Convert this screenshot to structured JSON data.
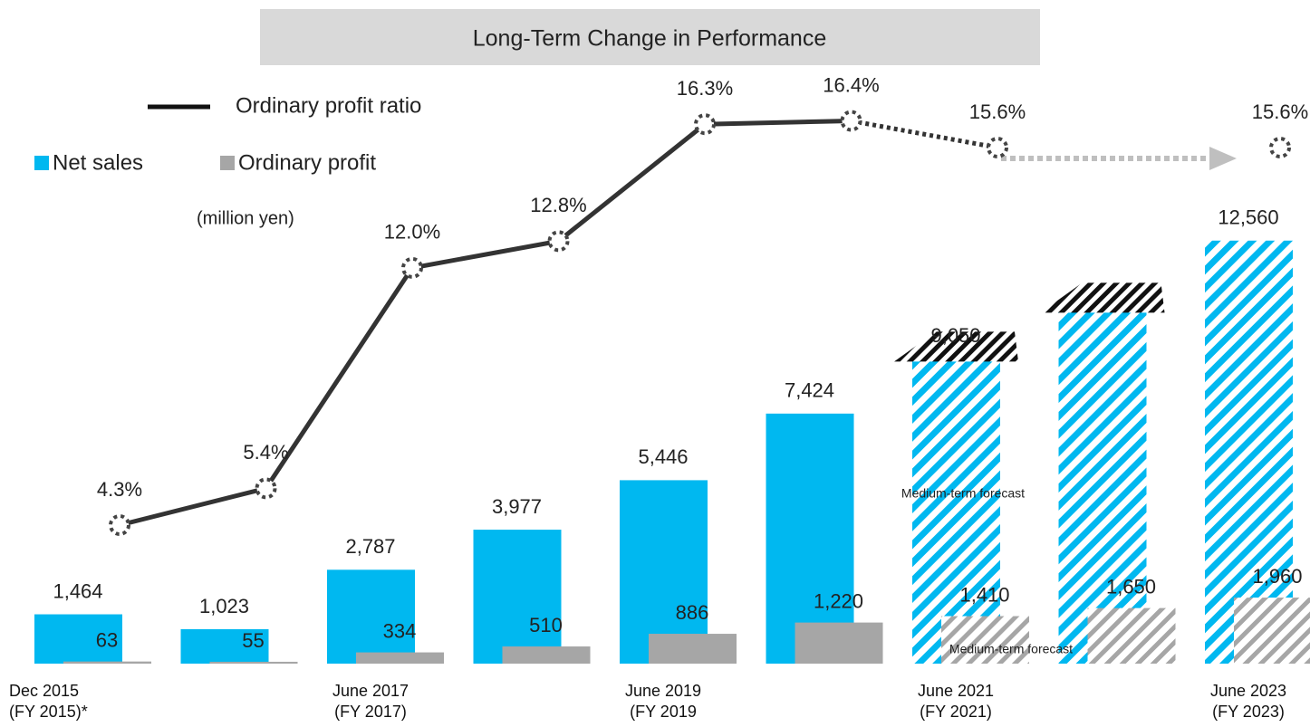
{
  "chart_data": {
    "type": "bar_line",
    "title": "Long-Term Change in Performance",
    "annotations": [
      "(million yen)",
      "Medium-term forecast",
      "Medium-term forecast"
    ],
    "categories": [
      "Dec 2015\n(FY 2015)*",
      null,
      "June 2017\n(FY 2017)",
      null,
      "June 2019\n(FY 2019",
      null,
      "June 2021\n(FY 2021)",
      null,
      "June 2023\n(FY 2023)"
    ],
    "forecast_start": 6,
    "series": [
      {
        "name": "Net sales",
        "color": "#00b8f0",
        "type": "bar",
        "values": [
          1464,
          1023,
          2787,
          3977,
          5446,
          7424,
          9050,
          10500,
          12560
        ],
        "value_labels": [
          "1,464",
          "1,023",
          "2,787",
          "3,977",
          "5,446",
          "7,424",
          "9,050",
          null,
          "12,560"
        ]
      },
      {
        "name": "Ordinary profit",
        "color": "#a6a6a6",
        "type": "bar",
        "values": [
          63,
          55,
          334,
          510,
          886,
          1220,
          1410,
          1650,
          1960
        ],
        "value_labels": [
          "63",
          "55",
          "334",
          "510",
          "886",
          "1,220",
          "1,410",
          "1,650",
          "1,960"
        ]
      },
      {
        "name": "Ordinary profit ratio",
        "color": "#333333",
        "type": "line",
        "values": [
          4.3,
          5.4,
          12.0,
          12.8,
          16.3,
          16.4,
          15.6,
          null,
          15.6
        ],
        "value_labels": [
          "4.3%",
          "5.4%",
          "12.0%",
          "12.8%",
          "16.3%",
          "16.4%",
          "15.6%",
          null,
          "15.6%"
        ]
      }
    ]
  }
}
